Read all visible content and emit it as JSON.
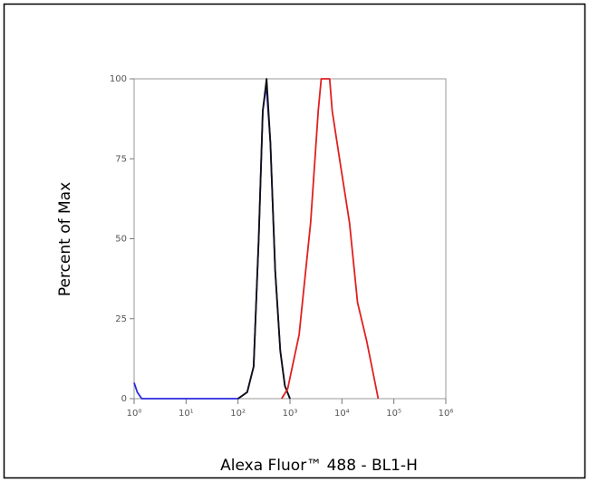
{
  "chart_data": {
    "type": "line",
    "x_label": "Alexa Fluor™ 488 - BL1-H",
    "y_label": "Percent of Max",
    "log_x": true,
    "xlim": [
      1,
      1000000
    ],
    "ylim": [
      0,
      100
    ],
    "xticks": [
      {
        "value": 1,
        "label": "10⁰"
      },
      {
        "value": 10,
        "label": "10¹"
      },
      {
        "value": 100,
        "label": "10²"
      },
      {
        "value": 1000,
        "label": "10³"
      },
      {
        "value": 10000,
        "label": "10⁴"
      },
      {
        "value": 100000,
        "label": "10⁵"
      },
      {
        "value": 1000000,
        "label": "10⁶"
      }
    ],
    "yticks": [
      0,
      25,
      50,
      75,
      100
    ],
    "series": [
      {
        "color": "#2a2adf",
        "x": [
          1,
          1.15,
          1.4,
          100,
          150,
          200,
          250,
          300,
          350,
          420,
          520,
          650,
          800,
          1000
        ],
        "values": [
          5,
          2,
          0,
          0,
          2,
          10,
          50,
          90,
          98,
          80,
          40,
          15,
          4,
          0
        ]
      },
      {
        "color": "#111111",
        "x": [
          100,
          150,
          200,
          250,
          300,
          355,
          420,
          520,
          650,
          800,
          1000
        ],
        "values": [
          0,
          2,
          10,
          50,
          90,
          100,
          80,
          40,
          15,
          4,
          0
        ]
      },
      {
        "color": "#e02020",
        "x": [
          690,
          900,
          1500,
          2500,
          3500,
          4000,
          5800,
          6500,
          9000,
          14000,
          20000,
          30000,
          50000
        ],
        "values": [
          0,
          3,
          20,
          55,
          90,
          100,
          100,
          90,
          75,
          55,
          30,
          18,
          0
        ]
      }
    ]
  }
}
